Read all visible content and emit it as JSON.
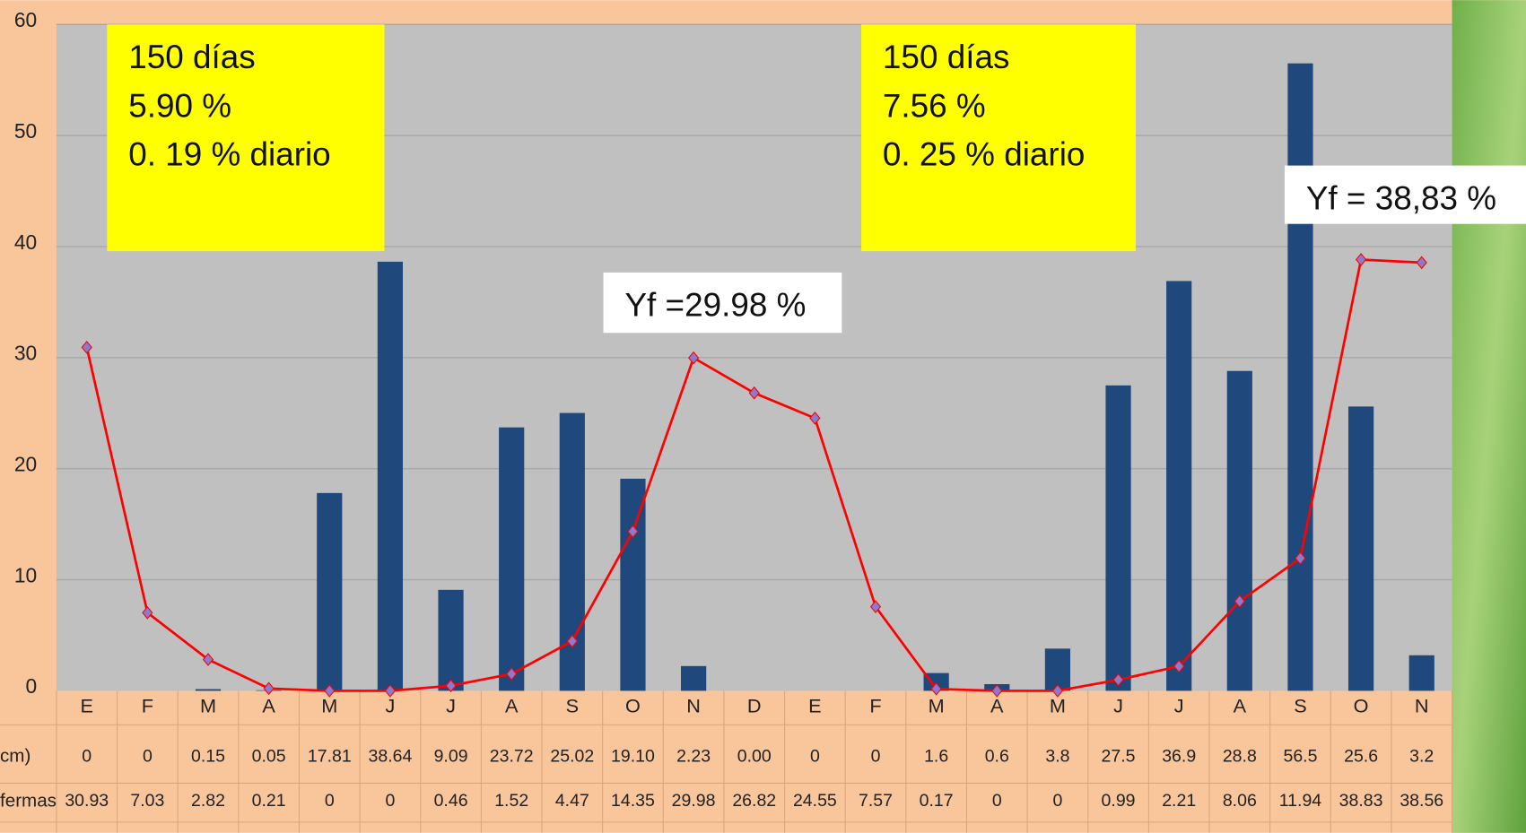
{
  "chart_data": {
    "type": "bar_line",
    "categories": [
      "E",
      "F",
      "M",
      "A",
      "M",
      "J",
      "J",
      "A",
      "S",
      "O",
      "N",
      "D",
      "E",
      "F",
      "M",
      "A",
      "M",
      "J",
      "J",
      "A",
      "S",
      "O",
      "N"
    ],
    "series": [
      {
        "name": "cm)",
        "type": "bar",
        "color": "#1f497d",
        "values": [
          0,
          0,
          0.15,
          0.05,
          17.81,
          38.64,
          9.09,
          23.72,
          25.02,
          19.1,
          2.23,
          0.0,
          0,
          0,
          1.6,
          0.6,
          3.8,
          27.5,
          36.9,
          28.8,
          56.5,
          25.6,
          3.2
        ],
        "value_labels": [
          "0",
          "0",
          "0.15",
          "0.05",
          "17.81",
          "38.64",
          "9.09",
          "23.72",
          "25.02",
          "19.10",
          "2.23",
          "0.00",
          "0",
          "0",
          "1.6",
          "0.6",
          "3.8",
          "27.5",
          "36.9",
          "28.8",
          "56.5",
          "25.6",
          "3.2"
        ]
      },
      {
        "name": "fermas",
        "type": "line",
        "color": "#ff0000",
        "marker_color": "#8a7bd0",
        "values": [
          30.93,
          7.03,
          2.82,
          0.21,
          0,
          0,
          0.46,
          1.52,
          4.47,
          14.35,
          29.98,
          26.82,
          24.55,
          7.57,
          0.17,
          0,
          0,
          0.99,
          2.21,
          8.06,
          11.94,
          38.83,
          38.56
        ]
      }
    ],
    "ylim": [
      0,
      60
    ],
    "yticks": [
      0,
      10,
      20,
      30,
      40,
      50,
      60
    ],
    "grid": true,
    "annotations": [
      {
        "lines": [
          "150 días",
          "5.90 %",
          "0. 19 % diario"
        ],
        "color": "#ffff00"
      },
      {
        "lines": [
          "150 días",
          "7.56 %",
          "0. 25 % diario"
        ],
        "color": "#ffff00"
      },
      {
        "lines": [
          "Yf =29.98 %"
        ],
        "color": "#ffffff"
      },
      {
        "lines": [
          "Yf = 38,83 %"
        ],
        "color": "#ffffff"
      }
    ]
  }
}
